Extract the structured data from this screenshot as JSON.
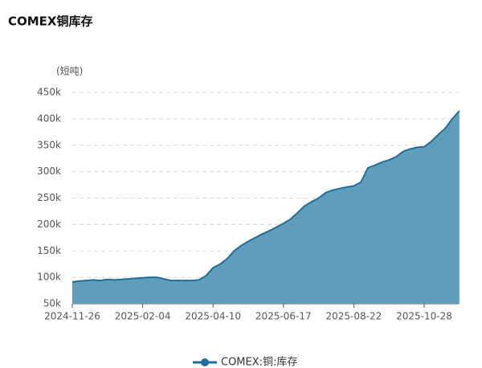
{
  "chart_data": {
    "type": "area",
    "title": "COMEX铜库存",
    "y_label": "(短吨)",
    "categories": [
      "2024-11-26",
      null,
      null,
      null,
      null,
      null,
      null,
      null,
      null,
      null,
      "2025-02-04",
      null,
      null,
      null,
      null,
      null,
      null,
      null,
      null,
      null,
      "2025-04-10",
      null,
      null,
      null,
      null,
      null,
      null,
      null,
      null,
      null,
      "2025-06-17",
      null,
      null,
      null,
      null,
      null,
      null,
      null,
      null,
      null,
      "2025-08-22",
      null,
      null,
      null,
      null,
      null,
      null,
      null,
      null,
      null,
      "2025-10-28",
      null,
      null,
      null,
      null,
      null
    ],
    "series": [
      {
        "name": "COMEX:铜:库存",
        "color": "#1f6f9a",
        "fill": "#5f9dbb",
        "values": [
          91000,
          93000,
          94000,
          95000,
          94000,
          96000,
          95000,
          96000,
          97000,
          98000,
          99000,
          100000,
          100000,
          97000,
          94000,
          94000,
          94000,
          94000,
          95000,
          103000,
          118000,
          125000,
          135000,
          150000,
          160000,
          168000,
          175000,
          182000,
          188000,
          195000,
          202000,
          210000,
          222000,
          235000,
          243000,
          250000,
          260000,
          265000,
          268000,
          271000,
          273000,
          280000,
          307000,
          312000,
          318000,
          322000,
          328000,
          338000,
          343000,
          346000,
          347000,
          357000,
          370000,
          382000,
          400000,
          415000
        ]
      }
    ],
    "ylim": [
      50000,
      450000
    ],
    "yticks": [
      {
        "value": 50000,
        "label": "50k"
      },
      {
        "value": 100000,
        "label": "100k"
      },
      {
        "value": 150000,
        "label": "150k"
      },
      {
        "value": 200000,
        "label": "200k"
      },
      {
        "value": 250000,
        "label": "250k"
      },
      {
        "value": 300000,
        "label": "300k"
      },
      {
        "value": 350000,
        "label": "350k"
      },
      {
        "value": 400000,
        "label": "400k"
      },
      {
        "value": 450000,
        "label": "450k"
      }
    ],
    "grid": true
  }
}
